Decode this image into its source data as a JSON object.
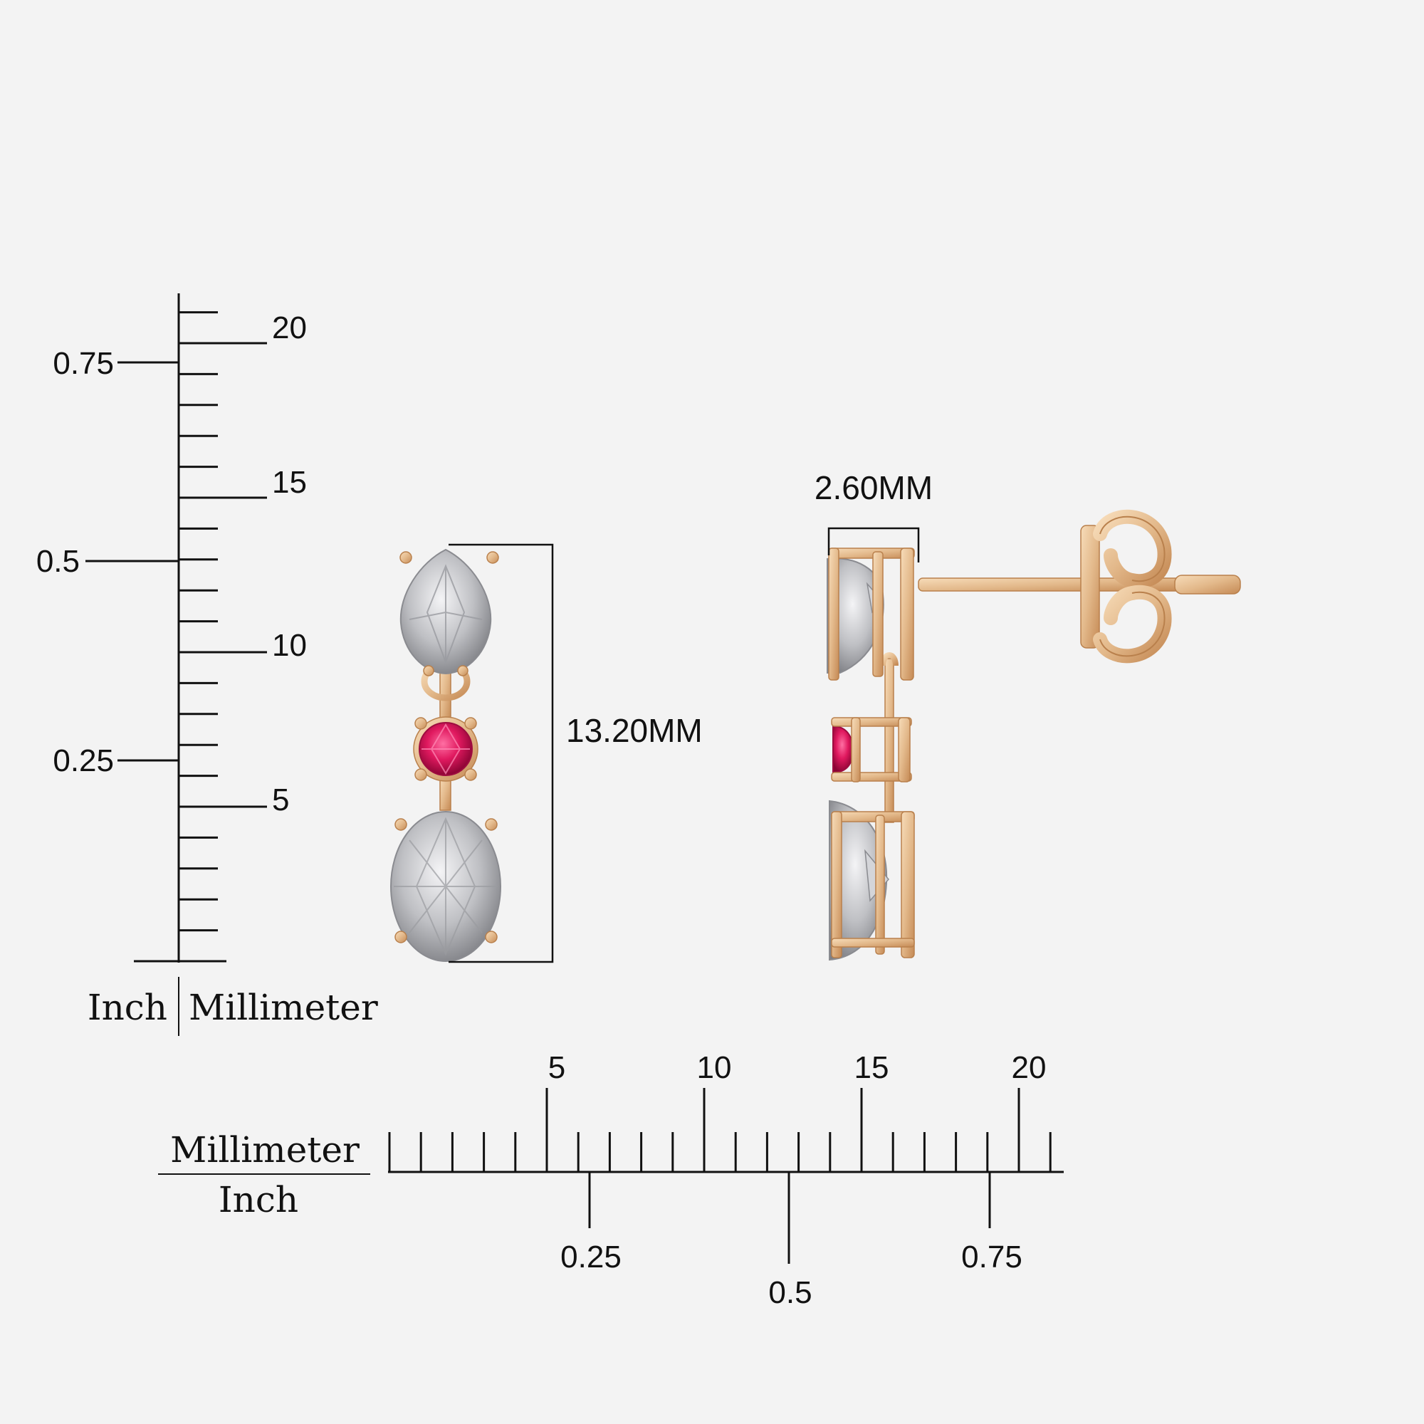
{
  "vertical_ruler": {
    "mm_labels": [
      "5",
      "10",
      "15",
      "20"
    ],
    "inch_labels": [
      "0.25",
      "0.5",
      "0.75"
    ],
    "unit_inch": "Inch",
    "unit_mm": "Millimeter"
  },
  "horizontal_ruler": {
    "mm_labels": [
      "5",
      "10",
      "15",
      "20"
    ],
    "inch_labels": [
      "0.25",
      "0.5",
      "0.75"
    ],
    "unit_mm": "Millimeter",
    "unit_inch": "Inch"
  },
  "dimensions": {
    "length": "13.20MM",
    "width": "2.60MM"
  },
  "colors": {
    "background": "#f3f3f3",
    "gold": "#e3b98b",
    "gold_dark": "#c98f5c",
    "diamond": "#c9c9cc",
    "ruby": "#e0195f",
    "ink": "#111111"
  },
  "icons": {
    "front_view": "earring-front-icon",
    "side_view": "earring-side-icon"
  }
}
